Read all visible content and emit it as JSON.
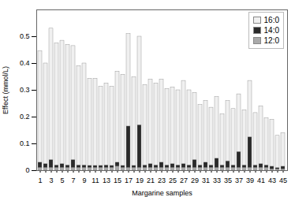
{
  "chart_data": {
    "type": "bar",
    "stacked": true,
    "categories": [
      "1",
      null,
      "3",
      null,
      "5",
      null,
      "7",
      null,
      "9",
      null,
      "11",
      null,
      "13",
      null,
      "15",
      null,
      "17",
      null,
      "19",
      null,
      "21",
      null,
      "23",
      null,
      "25",
      null,
      "27",
      null,
      "29",
      null,
      "31",
      null,
      "33",
      null,
      "35",
      null,
      "37",
      null,
      "39",
      null,
      "41",
      null,
      "43",
      null,
      "45"
    ],
    "series": [
      {
        "name": "16:0",
        "color": "#f0f0f0",
        "values": [
          0.415,
          0.375,
          0.49,
          0.455,
          0.46,
          0.45,
          0.425,
          0.37,
          0.38,
          0.325,
          0.325,
          0.295,
          0.305,
          0.295,
          0.34,
          0.34,
          0.345,
          0.33,
          0.33,
          0.3,
          0.315,
          0.305,
          0.31,
          0.285,
          0.285,
          0.28,
          0.31,
          0.28,
          0.25,
          0.225,
          0.23,
          0.215,
          0.23,
          0.19,
          0.225,
          0.21,
          0.215,
          0.205,
          0.21,
          0.195,
          0.215,
          0.175,
          0.175,
          0.12,
          0.125
        ]
      },
      {
        "name": "14:0",
        "color": "#2a2a2a",
        "values": [
          0.02,
          0.015,
          0.03,
          0.01,
          0.015,
          0.01,
          0.03,
          0.01,
          0.01,
          0.008,
          0.008,
          0.008,
          0.01,
          0.008,
          0.015,
          0.008,
          0.155,
          0.008,
          0.16,
          0.01,
          0.015,
          0.01,
          0.02,
          0.01,
          0.015,
          0.01,
          0.015,
          0.01,
          0.03,
          0.01,
          0.02,
          0.01,
          0.035,
          0.01,
          0.025,
          0.01,
          0.06,
          0.01,
          0.115,
          0.01,
          0.015,
          0.01,
          0.01,
          0.005,
          0.01
        ]
      },
      {
        "name": "12:0",
        "color": "#aaaaaa",
        "values": [
          0.01,
          0.01,
          0.01,
          0.01,
          0.01,
          0.01,
          0.01,
          0.01,
          0.01,
          0.01,
          0.01,
          0.01,
          0.01,
          0.01,
          0.015,
          0.01,
          0.01,
          0.01,
          0.01,
          0.01,
          0.01,
          0.01,
          0.01,
          0.01,
          0.01,
          0.01,
          0.01,
          0.01,
          0.01,
          0.01,
          0.01,
          0.01,
          0.01,
          0.01,
          0.01,
          0.01,
          0.01,
          0.01,
          0.01,
          0.01,
          0.01,
          0.01,
          0.005,
          0.005,
          0.005
        ]
      }
    ],
    "xlabel": "Margarine samples",
    "ylabel": "Effect (mmol/L)",
    "ylim": [
      0,
      0.6
    ],
    "yticks": [
      0,
      0.1,
      0.2,
      0.3,
      0.4,
      0.5
    ],
    "legend": "upper right",
    "grid": false
  }
}
